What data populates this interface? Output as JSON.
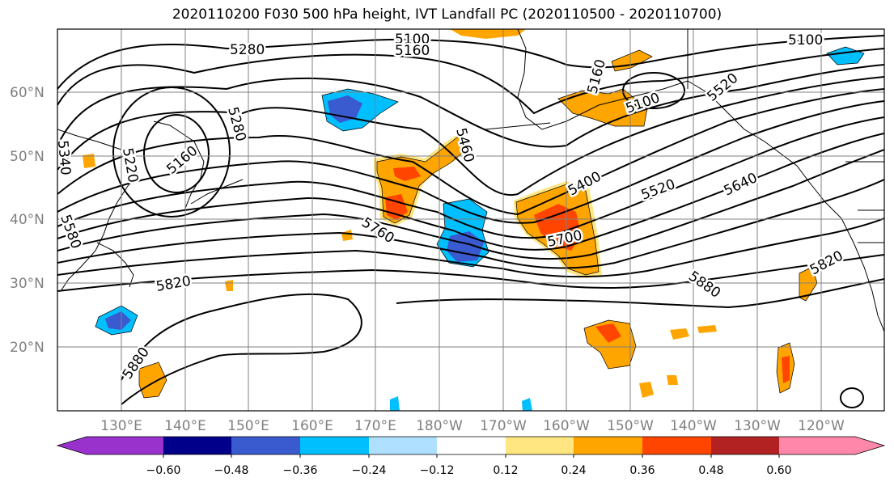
{
  "title": "2020110200 F030 500 hPa height, IVT Landfall PC (2020110500 - 2020110700)",
  "map": {
    "lat_labels": [
      "60°N",
      "50°N",
      "40°N",
      "30°N",
      "20°N"
    ],
    "lon_labels": [
      "130°E",
      "140°E",
      "150°E",
      "160°E",
      "170°E",
      "180°W",
      "170°W",
      "160°W",
      "150°W",
      "140°W",
      "130°W",
      "120°W"
    ],
    "contour_labels": [
      "5100",
      "5160",
      "5280",
      "5280",
      "5340",
      "5220",
      "5160",
      "5100",
      "5160",
      "5460",
      "5400",
      "5520",
      "5640",
      "5700",
      "5760",
      "5820",
      "5820",
      "5880",
      "5880",
      "5580",
      "5100",
      "5520"
    ]
  },
  "colorbar": {
    "tick_labels": [
      "−0.60",
      "−0.48",
      "−0.36",
      "−0.24",
      "−0.12",
      "0.12",
      "0.24",
      "0.36",
      "0.48",
      "0.60"
    ],
    "colors": [
      "#9932CC",
      "#00008B",
      "#3A5BD0",
      "#00BFFF",
      "#B0E0FF",
      "#FFFFFF",
      "#FFE680",
      "#FFA500",
      "#FF4500",
      "#B22222",
      "#FF88AA"
    ]
  }
}
